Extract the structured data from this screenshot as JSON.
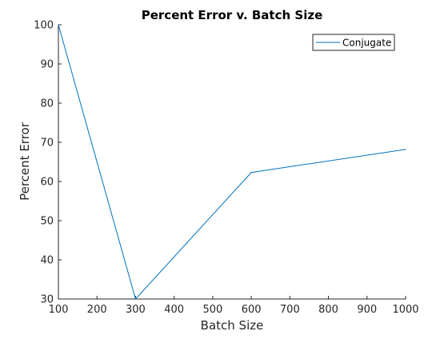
{
  "chart_data": {
    "type": "line",
    "title": "Percent Error v. Batch Size",
    "xlabel": "Batch Size",
    "ylabel": "Percent Error",
    "xlim": [
      100,
      1000
    ],
    "ylim": [
      30,
      100
    ],
    "xticks": [
      "100",
      "200",
      "300",
      "400",
      "500",
      "600",
      "700",
      "800",
      "900",
      "1000"
    ],
    "yticks": [
      "30",
      "40",
      "50",
      "60",
      "70",
      "80",
      "90",
      "100"
    ],
    "grid": false,
    "legend_position": "top-right",
    "series": [
      {
        "name": "Conjugate",
        "color": "#0072bd",
        "x": [
          100,
          300,
          600,
          1000
        ],
        "y": [
          100,
          30,
          62.3,
          68.2
        ]
      }
    ]
  }
}
